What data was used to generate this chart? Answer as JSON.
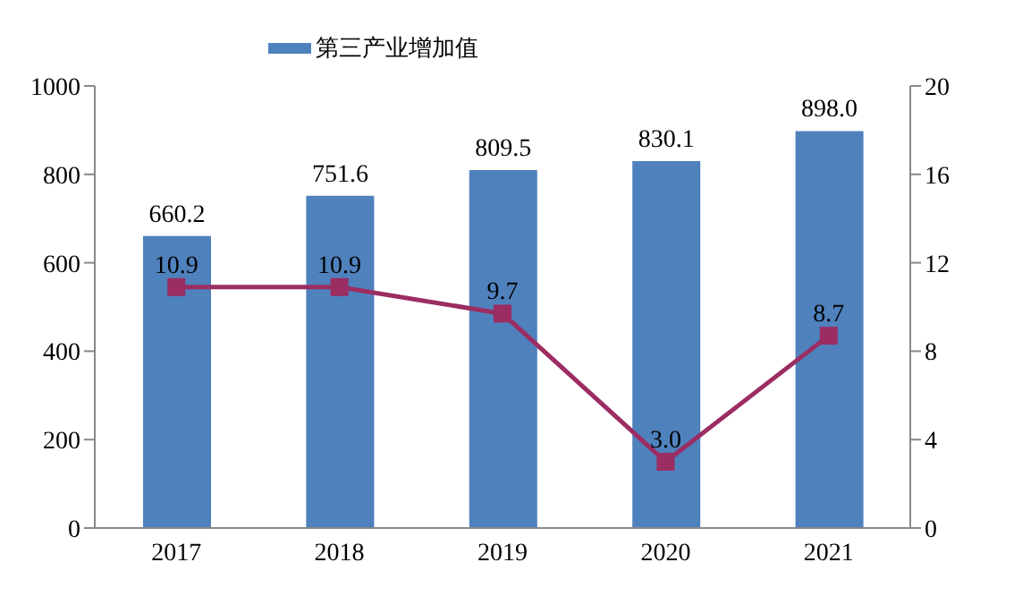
{
  "chart_data": {
    "type": "bar",
    "categories": [
      "2017",
      "2018",
      "2019",
      "2020",
      "2021"
    ],
    "series": [
      {
        "name": "第三产业增加值",
        "color": "#4f81bd",
        "values": [
          660.2,
          751.6,
          809.5,
          830.1,
          898.0
        ],
        "value_labels": [
          "660.2",
          "751.6",
          "809.5",
          "830.1",
          "898.0"
        ]
      },
      {
        "type": "line",
        "axis": "y2",
        "color": "#9b2d62",
        "values": [
          10.9,
          10.9,
          9.7,
          3.0,
          8.7
        ],
        "value_labels": [
          "10.9",
          "10.9",
          "9.7",
          "3.0",
          "8.7"
        ]
      }
    ],
    "ylim": [
      0,
      1000
    ],
    "yticks": [
      0,
      200,
      400,
      600,
      800,
      1000
    ],
    "y2lim": [
      0,
      20
    ],
    "y2ticks": [
      0,
      4,
      8,
      12,
      16,
      20
    ],
    "legend": "top",
    "grid": false,
    "marker": "square",
    "line_style": "solid"
  }
}
